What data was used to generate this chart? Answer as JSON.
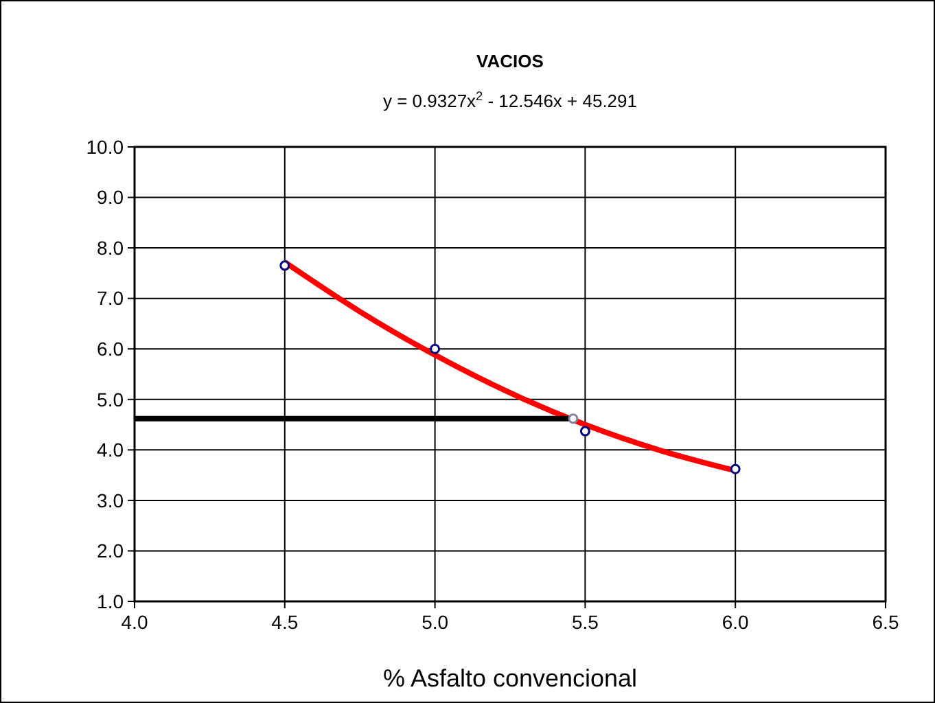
{
  "chart_data": {
    "type": "scatter",
    "title": "VACIOS",
    "xlabel": "% Asfalto convencional",
    "annotations": [
      "y = 0.9327x$^{2}$ - 12.546x  + 45.291"
    ],
    "xlim": [
      4.0,
      6.5
    ],
    "xticks": [
      {
        "value": 4.0,
        "label": "4.0"
      },
      {
        "value": 4.5,
        "label": "4.5"
      },
      {
        "value": 5.0,
        "label": "5.0"
      },
      {
        "value": 5.5,
        "label": "5.5"
      },
      {
        "value": 6.0,
        "label": "6.0"
      },
      {
        "value": 6.5,
        "label": "6.5"
      }
    ],
    "ylim": [
      1.0,
      10.0
    ],
    "yticks": [
      {
        "value": 1,
        "label": "1.0"
      },
      {
        "value": 2,
        "label": "2.0"
      },
      {
        "value": 3,
        "label": "3.0"
      },
      {
        "value": 4,
        "label": "4.0"
      },
      {
        "value": 5,
        "label": "5.0"
      },
      {
        "value": 6,
        "label": "6.0"
      },
      {
        "value": 7,
        "label": "7.0"
      },
      {
        "value": 8,
        "label": "8.0"
      },
      {
        "value": 9,
        "label": "9.0"
      },
      {
        "value": 10,
        "label": "10.0"
      }
    ],
    "grid": true,
    "series": [
      {
        "type": "line",
        "marker": "none",
        "color": "#ff0000",
        "x": [
          4.5,
          4.75,
          5.0,
          5.25,
          5.5,
          5.75,
          6.0
        ],
        "values": [
          7.72,
          6.74,
          5.88,
          5.13,
          4.5,
          3.99,
          3.59
        ]
      },
      {
        "type": "line",
        "marker": "none",
        "color": "#000000",
        "x": [
          4.0,
          5.46
        ],
        "values": [
          4.62,
          4.62
        ]
      },
      {
        "marker": "circle",
        "color": "#000080",
        "x": [
          4.5,
          5.0,
          5.5,
          6.0
        ],
        "values": [
          7.65,
          6.0,
          4.37,
          3.62
        ]
      },
      {
        "marker": "circle",
        "color": "#8080a0",
        "x": [
          5.46
        ],
        "values": [
          4.62
        ]
      }
    ]
  }
}
